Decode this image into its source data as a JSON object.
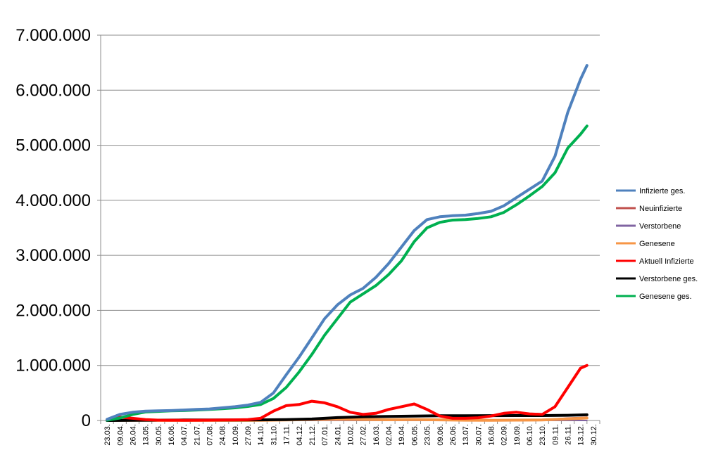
{
  "chart_data": {
    "type": "line",
    "title": "",
    "xlabel": "",
    "ylabel": "",
    "ylim": [
      0,
      7000000
    ],
    "y_ticks": [
      0,
      1000000,
      2000000,
      3000000,
      4000000,
      5000000,
      6000000,
      7000000
    ],
    "y_tick_labels": [
      "0",
      "1.000.000",
      "2.000.000",
      "3.000.000",
      "4.000.000",
      "5.000.000",
      "6.000.000",
      "7.000.000"
    ],
    "x_tick_labels": [
      "23.03.",
      "09.04.",
      "26.04.",
      "13.05.",
      "30.05.",
      "16.06.",
      "04.07.",
      "21.07.",
      "07.08.",
      "24.08.",
      "10.09.",
      "27.09.",
      "14.10.",
      "31.10.",
      "17.11.",
      "04.12.",
      "21.12.",
      "07.01.",
      "24.01.",
      "10.02.",
      "27.02.",
      "16.03.",
      "02.04.",
      "19.04.",
      "06.05.",
      "23.05.",
      "09.06.",
      "26.06.",
      "13.07.",
      "30.07.",
      "16.08.",
      "02.09.",
      "19.09.",
      "06.10.",
      "23.10.",
      "09.11.",
      "26.11.",
      "13.12.",
      "30.12."
    ],
    "grid": "horizontal",
    "legend_position": "right",
    "series": [
      {
        "name": "Infizierte ges.",
        "color": "#4F81BD",
        "points": [
          [
            0,
            20000
          ],
          [
            1,
            110000
          ],
          [
            2,
            150000
          ],
          [
            3,
            170000
          ],
          [
            4,
            175000
          ],
          [
            5,
            180000
          ],
          [
            6,
            190000
          ],
          [
            7,
            200000
          ],
          [
            8,
            210000
          ],
          [
            9,
            230000
          ],
          [
            10,
            250000
          ],
          [
            11,
            280000
          ],
          [
            12,
            330000
          ],
          [
            13,
            500000
          ],
          [
            14,
            830000
          ],
          [
            15,
            1150000
          ],
          [
            16,
            1500000
          ],
          [
            17,
            1850000
          ],
          [
            18,
            2100000
          ],
          [
            19,
            2280000
          ],
          [
            20,
            2400000
          ],
          [
            21,
            2600000
          ],
          [
            22,
            2850000
          ],
          [
            23,
            3150000
          ],
          [
            24,
            3450000
          ],
          [
            25,
            3650000
          ],
          [
            26,
            3700000
          ],
          [
            27,
            3720000
          ],
          [
            28,
            3730000
          ],
          [
            29,
            3760000
          ],
          [
            30,
            3800000
          ],
          [
            31,
            3900000
          ],
          [
            32,
            4050000
          ],
          [
            33,
            4200000
          ],
          [
            34,
            4350000
          ],
          [
            35,
            4800000
          ],
          [
            36,
            5600000
          ],
          [
            37,
            6200000
          ],
          [
            37.5,
            6450000
          ]
        ]
      },
      {
        "name": "Neuinfizierte",
        "color": "#C0504D",
        "points": [
          [
            0,
            3000
          ],
          [
            1,
            6000
          ],
          [
            2,
            3000
          ],
          [
            3,
            1500
          ],
          [
            4,
            800
          ],
          [
            5,
            600
          ],
          [
            6,
            600
          ],
          [
            7,
            800
          ],
          [
            8,
            1200
          ],
          [
            9,
            1500
          ],
          [
            10,
            1500
          ],
          [
            11,
            2000
          ],
          [
            12,
            5000
          ],
          [
            13,
            17000
          ],
          [
            14,
            22000
          ],
          [
            15,
            24000
          ],
          [
            16,
            25000
          ],
          [
            17,
            20000
          ],
          [
            18,
            12000
          ],
          [
            19,
            8000
          ],
          [
            20,
            8000
          ],
          [
            21,
            11000
          ],
          [
            22,
            18000
          ],
          [
            23,
            20000
          ],
          [
            24,
            15000
          ],
          [
            25,
            6000
          ],
          [
            26,
            2000
          ],
          [
            27,
            700
          ],
          [
            28,
            800
          ],
          [
            29,
            1500
          ],
          [
            30,
            3000
          ],
          [
            31,
            7000
          ],
          [
            32,
            10000
          ],
          [
            33,
            8000
          ],
          [
            34,
            10000
          ],
          [
            35,
            30000
          ],
          [
            36,
            45000
          ],
          [
            37,
            55000
          ],
          [
            37.5,
            60000
          ]
        ]
      },
      {
        "name": "Verstorbene",
        "color": "#8064A2",
        "points": [
          [
            0,
            0
          ],
          [
            2,
            200
          ],
          [
            4,
            50
          ],
          [
            10,
            10
          ],
          [
            14,
            200
          ],
          [
            16,
            500
          ],
          [
            18,
            700
          ],
          [
            20,
            300
          ],
          [
            24,
            200
          ],
          [
            26,
            50
          ],
          [
            30,
            20
          ],
          [
            32,
            30
          ],
          [
            34,
            60
          ],
          [
            36,
            300
          ],
          [
            37.5,
            400
          ]
        ]
      },
      {
        "name": "Genesene",
        "color": "#F79646",
        "points": [
          [
            0,
            1000
          ],
          [
            1,
            3000
          ],
          [
            2,
            4000
          ],
          [
            3,
            2500
          ],
          [
            4,
            1500
          ],
          [
            5,
            800
          ],
          [
            8,
            900
          ],
          [
            11,
            1200
          ],
          [
            12,
            2000
          ],
          [
            14,
            10000
          ],
          [
            16,
            18000
          ],
          [
            18,
            22000
          ],
          [
            20,
            18000
          ],
          [
            22,
            13000
          ],
          [
            24,
            15000
          ],
          [
            26,
            12000
          ],
          [
            28,
            5000
          ],
          [
            30,
            2000
          ],
          [
            32,
            7000
          ],
          [
            34,
            9000
          ],
          [
            36,
            28000
          ],
          [
            37.5,
            45000
          ]
        ]
      },
      {
        "name": "Aktuell Infizierte",
        "color": "#FF0000",
        "points": [
          [
            0,
            10000
          ],
          [
            1,
            60000
          ],
          [
            2,
            40000
          ],
          [
            3,
            15000
          ],
          [
            4,
            7000
          ],
          [
            5,
            5000
          ],
          [
            6,
            4000
          ],
          [
            7,
            5000
          ],
          [
            8,
            7000
          ],
          [
            9,
            10000
          ],
          [
            10,
            12000
          ],
          [
            11,
            15000
          ],
          [
            12,
            40000
          ],
          [
            13,
            170000
          ],
          [
            14,
            270000
          ],
          [
            15,
            290000
          ],
          [
            16,
            350000
          ],
          [
            17,
            320000
          ],
          [
            18,
            250000
          ],
          [
            19,
            150000
          ],
          [
            20,
            110000
          ],
          [
            21,
            130000
          ],
          [
            22,
            200000
          ],
          [
            23,
            250000
          ],
          [
            24,
            300000
          ],
          [
            25,
            200000
          ],
          [
            26,
            80000
          ],
          [
            27,
            40000
          ],
          [
            28,
            40000
          ],
          [
            29,
            50000
          ],
          [
            30,
            80000
          ],
          [
            31,
            130000
          ],
          [
            32,
            150000
          ],
          [
            33,
            120000
          ],
          [
            34,
            110000
          ],
          [
            35,
            250000
          ],
          [
            36,
            600000
          ],
          [
            37,
            950000
          ],
          [
            37.5,
            1000000
          ]
        ]
      },
      {
        "name": "Verstorbene ges.",
        "color": "#000000",
        "points": [
          [
            0,
            0
          ],
          [
            2,
            3000
          ],
          [
            4,
            7000
          ],
          [
            6,
            9000
          ],
          [
            8,
            9500
          ],
          [
            10,
            10000
          ],
          [
            12,
            11000
          ],
          [
            14,
            16000
          ],
          [
            16,
            27000
          ],
          [
            18,
            53000
          ],
          [
            20,
            66000
          ],
          [
            22,
            73000
          ],
          [
            24,
            81000
          ],
          [
            26,
            86000
          ],
          [
            28,
            87000
          ],
          [
            30,
            88000
          ],
          [
            32,
            89000
          ],
          [
            34,
            90000
          ],
          [
            36,
            95000
          ],
          [
            37.5,
            103000
          ]
        ]
      },
      {
        "name": "Genesene ges.",
        "color": "#00B050",
        "points": [
          [
            0,
            5000
          ],
          [
            1,
            45000
          ],
          [
            2,
            110000
          ],
          [
            3,
            155000
          ],
          [
            4,
            165000
          ],
          [
            5,
            175000
          ],
          [
            6,
            180000
          ],
          [
            7,
            190000
          ],
          [
            8,
            200000
          ],
          [
            9,
            215000
          ],
          [
            10,
            230000
          ],
          [
            11,
            255000
          ],
          [
            12,
            290000
          ],
          [
            13,
            400000
          ],
          [
            14,
            600000
          ],
          [
            15,
            880000
          ],
          [
            16,
            1200000
          ],
          [
            17,
            1550000
          ],
          [
            18,
            1850000
          ],
          [
            19,
            2150000
          ],
          [
            20,
            2300000
          ],
          [
            21,
            2450000
          ],
          [
            22,
            2650000
          ],
          [
            23,
            2900000
          ],
          [
            24,
            3250000
          ],
          [
            25,
            3500000
          ],
          [
            26,
            3600000
          ],
          [
            27,
            3640000
          ],
          [
            28,
            3650000
          ],
          [
            29,
            3670000
          ],
          [
            30,
            3700000
          ],
          [
            31,
            3780000
          ],
          [
            32,
            3920000
          ],
          [
            33,
            4080000
          ],
          [
            34,
            4250000
          ],
          [
            35,
            4500000
          ],
          [
            36,
            4950000
          ],
          [
            37,
            5200000
          ],
          [
            37.5,
            5350000
          ]
        ]
      }
    ]
  }
}
